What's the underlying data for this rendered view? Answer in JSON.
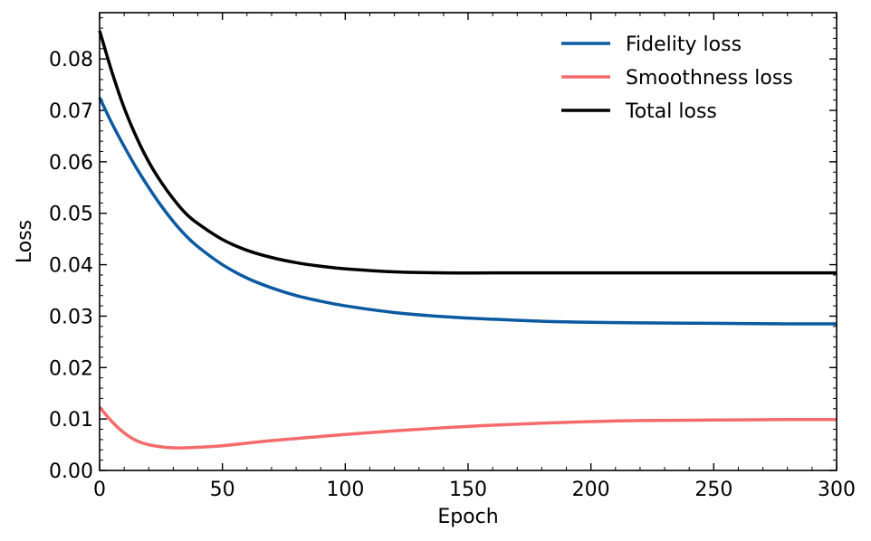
{
  "chart_data": {
    "type": "line",
    "xlabel": "Epoch",
    "ylabel": "Loss",
    "xlim": [
      0,
      300
    ],
    "ylim": [
      0,
      0.089
    ],
    "xticks": [
      "0",
      "50",
      "100",
      "150",
      "200",
      "250",
      "300"
    ],
    "yticks": [
      "0.00",
      "0.01",
      "0.02",
      "0.03",
      "0.04",
      "0.05",
      "0.06",
      "0.07",
      "0.08"
    ],
    "grid": false,
    "legend_position": "top-right",
    "series": [
      {
        "name": "Fidelity loss",
        "color": "#0b5aa1",
        "x": [
          0,
          5,
          10,
          15,
          20,
          25,
          30,
          35,
          40,
          50,
          60,
          70,
          80,
          90,
          100,
          120,
          140,
          160,
          180,
          200,
          220,
          250,
          280,
          300
        ],
        "y": [
          0.0725,
          0.0675,
          0.063,
          0.0588,
          0.055,
          0.0515,
          0.0484,
          0.0457,
          0.0435,
          0.04,
          0.0374,
          0.0355,
          0.034,
          0.0329,
          0.032,
          0.0307,
          0.0299,
          0.0294,
          0.029,
          0.0288,
          0.0287,
          0.0286,
          0.0285,
          0.0285
        ]
      },
      {
        "name": "Smoothness loss",
        "color": "#f46b6b",
        "x": [
          0,
          5,
          10,
          15,
          20,
          25,
          30,
          35,
          40,
          50,
          60,
          70,
          80,
          90,
          100,
          120,
          140,
          160,
          180,
          200,
          220,
          250,
          280,
          300
        ],
        "y": [
          0.0123,
          0.0095,
          0.0073,
          0.0058,
          0.005,
          0.0046,
          0.0044,
          0.0044,
          0.0045,
          0.0048,
          0.0053,
          0.0058,
          0.0062,
          0.0066,
          0.007,
          0.0077,
          0.0083,
          0.0088,
          0.0092,
          0.0095,
          0.0097,
          0.0098,
          0.0099,
          0.0099
        ]
      },
      {
        "name": "Total loss",
        "color": "#000000",
        "x": [
          0,
          5,
          10,
          15,
          20,
          25,
          30,
          35,
          40,
          50,
          60,
          70,
          80,
          90,
          100,
          120,
          140,
          160,
          180,
          200,
          220,
          250,
          280,
          300
        ],
        "y": [
          0.0855,
          0.0775,
          0.0705,
          0.0648,
          0.06,
          0.0561,
          0.0528,
          0.05,
          0.048,
          0.0449,
          0.0428,
          0.0414,
          0.0404,
          0.0397,
          0.0392,
          0.0386,
          0.0384,
          0.0384,
          0.0384,
          0.0384,
          0.0384,
          0.0384,
          0.0384,
          0.0384
        ]
      }
    ]
  }
}
